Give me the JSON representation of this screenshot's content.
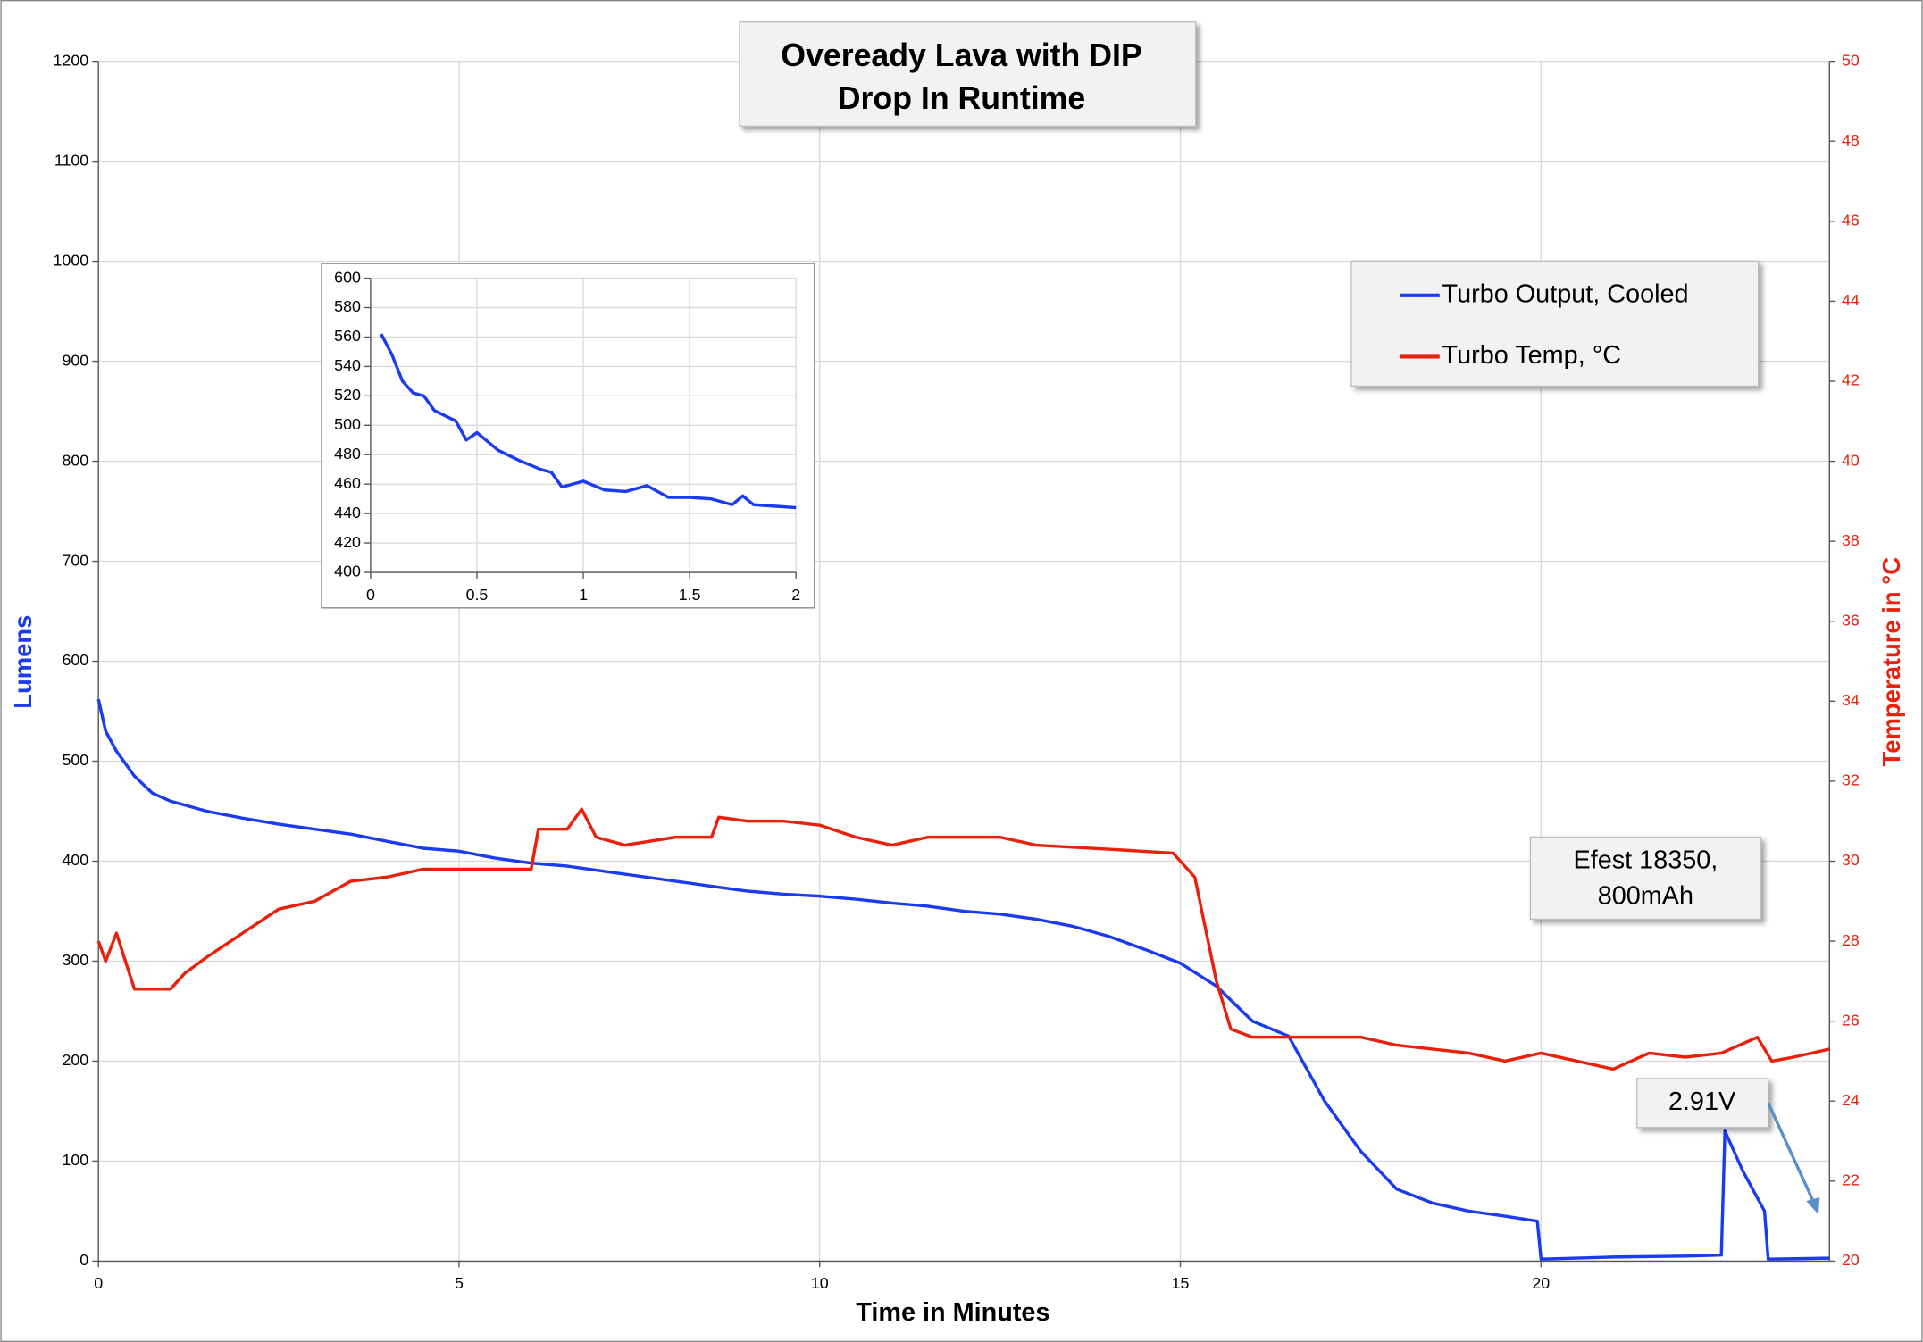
{
  "chart_data": [
    {
      "type": "line",
      "title": [
        "Oveready Lava with DIP",
        "Drop In Runtime"
      ],
      "x_label": "Time in Minutes",
      "y_label": "Lumens",
      "y2_label": "Temperature in °C",
      "annotations": [
        [
          "Efest 18350,",
          "800mAh"
        ],
        [
          "2.91V"
        ]
      ],
      "xlim": [
        0,
        24
      ],
      "xticks": [
        0,
        5,
        10,
        15,
        20
      ],
      "ylim": [
        0,
        1200
      ],
      "yticks": [
        0,
        100,
        200,
        300,
        400,
        500,
        600,
        700,
        800,
        900,
        1000,
        1100,
        1200
      ],
      "y2lim": [
        20,
        50
      ],
      "y2ticks": [
        20,
        22,
        24,
        26,
        28,
        30,
        32,
        34,
        36,
        38,
        40,
        42,
        44,
        46,
        48,
        50
      ],
      "grid": true,
      "legend": "top-right",
      "series": [
        {
          "name": "Turbo Output, Cooled",
          "color": "#1a3bf0",
          "x": [
            0,
            0.1,
            0.25,
            0.5,
            0.75,
            1,
            1.5,
            2,
            2.5,
            3,
            3.5,
            4,
            4.5,
            5,
            5.5,
            6,
            6.5,
            7,
            7.5,
            8,
            8.5,
            9,
            9.5,
            10,
            10.5,
            11,
            11.5,
            12,
            12.5,
            13,
            13.5,
            14,
            14.5,
            15,
            15.5,
            16,
            16.5,
            17,
            17.5,
            18,
            18.5,
            19,
            19.5,
            19.95,
            20,
            21,
            22,
            22.5,
            22.55,
            22.8,
            23.1,
            23.15,
            24
          ],
          "values": [
            562,
            530,
            510,
            485,
            468,
            460,
            450,
            443,
            437,
            432,
            427,
            420,
            413,
            410,
            403,
            398,
            395,
            390,
            385,
            380,
            375,
            370,
            367,
            365,
            362,
            358,
            355,
            350,
            347,
            342,
            335,
            325,
            312,
            298,
            275,
            240,
            225,
            160,
            110,
            72,
            58,
            50,
            45,
            40,
            2,
            4,
            5,
            6,
            130,
            90,
            50,
            2,
            3
          ]
        },
        {
          "name": "Turbo Temp, °C",
          "color": "#e8200c",
          "axis": "y2",
          "x": [
            0,
            0.1,
            0.25,
            0.5,
            1,
            1.2,
            1.5,
            2,
            2.5,
            3,
            3.5,
            4,
            4.5,
            5.5,
            6,
            6.1,
            6.5,
            6.7,
            6.9,
            7.3,
            8,
            8.5,
            8.6,
            9,
            9.5,
            10,
            10.5,
            11,
            11.5,
            12.5,
            13,
            14,
            14.9,
            15.2,
            15.5,
            15.7,
            16,
            17.5,
            18,
            19,
            19.5,
            20,
            20.5,
            21,
            21.5,
            22,
            22.5,
            23,
            23.2,
            23.5,
            24
          ],
          "values": [
            28,
            27.5,
            28.2,
            26.8,
            26.8,
            27.2,
            27.6,
            28.2,
            28.8,
            29,
            29.5,
            29.6,
            29.8,
            29.8,
            29.8,
            30.8,
            30.8,
            31.3,
            30.6,
            30.4,
            30.6,
            30.6,
            31.1,
            31,
            31,
            30.9,
            30.6,
            30.4,
            30.6,
            30.6,
            30.4,
            30.3,
            30.2,
            29.6,
            27,
            25.8,
            25.6,
            25.6,
            25.4,
            25.2,
            25,
            25.2,
            25,
            24.8,
            25.2,
            25.1,
            25.2,
            25.6,
            25,
            25.1,
            25.3
          ]
        }
      ]
    },
    {
      "type": "line",
      "xlim": [
        0,
        2
      ],
      "xticks": [
        0,
        0.5,
        1,
        1.5,
        2
      ],
      "ylim": [
        400,
        600
      ],
      "yticks": [
        400,
        420,
        440,
        460,
        480,
        500,
        520,
        540,
        560,
        580,
        600
      ],
      "grid": true,
      "series": [
        {
          "color": "#1a3bf0",
          "x": [
            0.05,
            0.1,
            0.15,
            0.2,
            0.25,
            0.3,
            0.4,
            0.45,
            0.5,
            0.6,
            0.7,
            0.8,
            0.85,
            0.9,
            1,
            1.1,
            1.2,
            1.3,
            1.4,
            1.5,
            1.6,
            1.7,
            1.75,
            1.8,
            1.9,
            2
          ],
          "values": [
            562,
            548,
            530,
            522,
            520,
            510,
            503,
            490,
            495,
            483,
            476,
            470,
            468,
            458,
            462,
            456,
            455,
            459,
            451,
            451,
            450,
            446,
            452,
            446,
            445,
            444
          ]
        }
      ]
    }
  ]
}
